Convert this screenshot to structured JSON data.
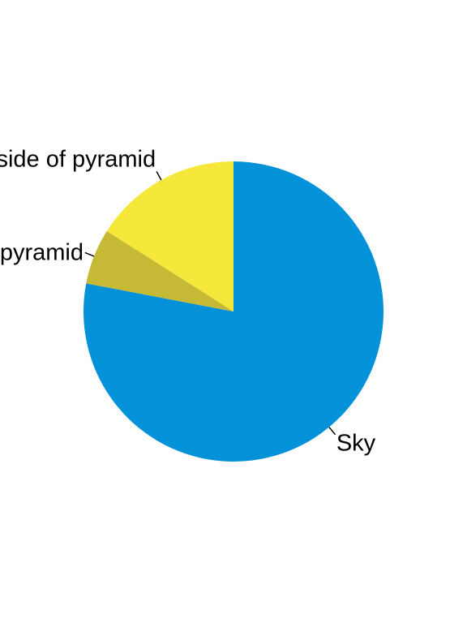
{
  "chart_data": {
    "type": "pie",
    "title": "",
    "start_angle_deg": 90,
    "direction": "clockwise",
    "labels": [
      "Sky",
      "Shady side of a pyramid",
      "Sunny side of pyramid"
    ],
    "values": [
      0.78,
      0.06,
      0.16
    ],
    "colors": [
      "#0392d8",
      "#c5b936",
      "#f5e83a"
    ],
    "legend": "none",
    "label_style": "outside-with-leader-lines"
  }
}
